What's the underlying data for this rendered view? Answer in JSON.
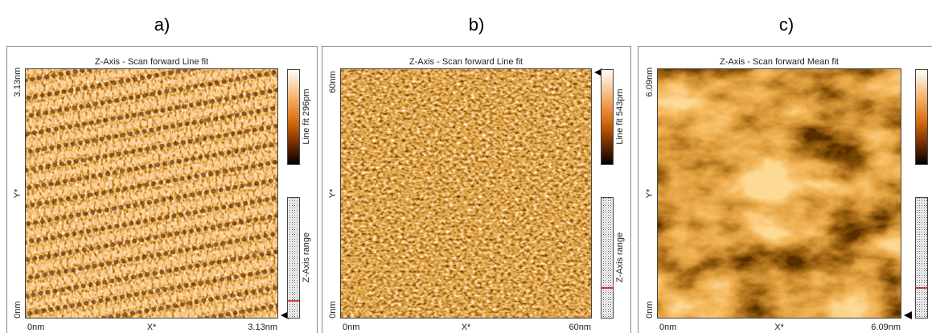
{
  "panels": [
    {
      "label": "a)",
      "title": "Z-Axis - Scan forward   Line fit",
      "y_top": "3.13nm",
      "y_mid": "Y*",
      "y_bottom": "0nm",
      "x_left": "0nm",
      "x_mid": "X*",
      "x_right": "3.13nm",
      "colorbar_label": "Line fit 296pm",
      "range_label": "Z-Axis range"
    },
    {
      "label": "b)",
      "title": "Z-Axis - Scan forward   Line fit",
      "y_top": "60nm",
      "y_mid": "Y*",
      "y_bottom": "0nm",
      "x_left": "0nm",
      "x_mid": "X*",
      "x_right": "60nm",
      "colorbar_label": "Line fit 543pm",
      "range_label": "Z-Axis range"
    },
    {
      "label": "c)",
      "title": "Z-Axis - Scan forward   Mean fit",
      "y_top": "6.09nm",
      "y_mid": "Y*",
      "y_bottom": "0nm",
      "x_left": "0nm",
      "x_mid": "X*",
      "x_right": "6.09nm"
    }
  ]
}
